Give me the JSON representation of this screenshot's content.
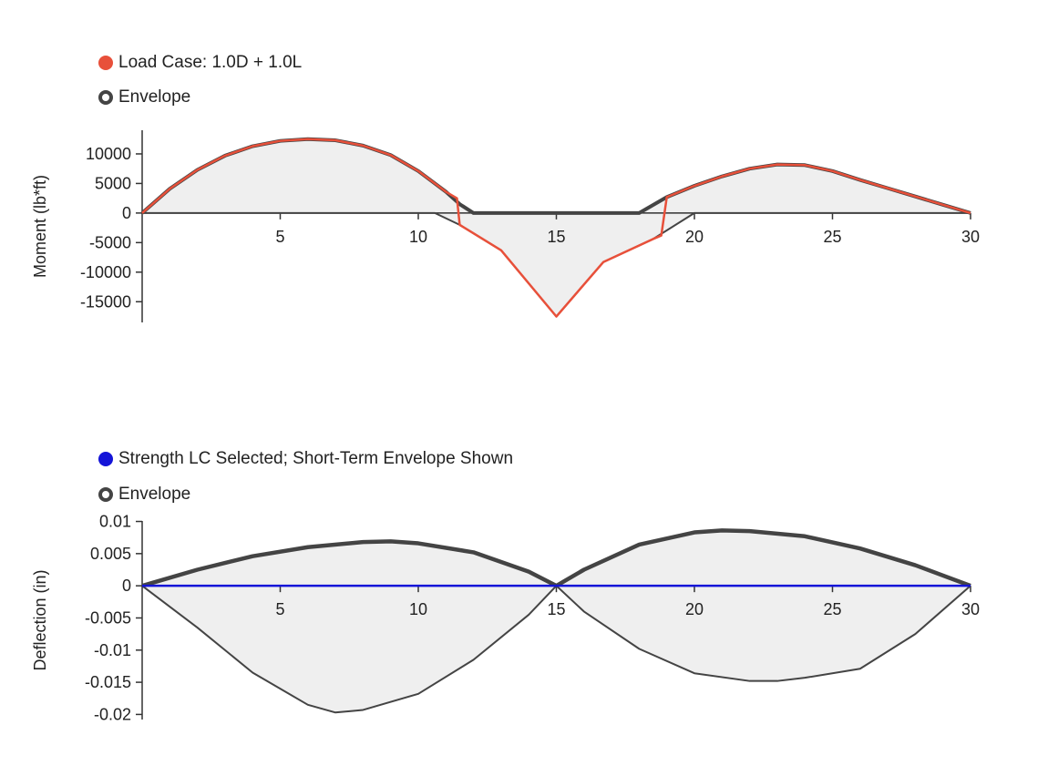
{
  "chart_data": [
    {
      "type": "area",
      "title": "",
      "xlabel": "",
      "ylabel": "Moment (lb*ft)",
      "xlim": [
        0,
        30
      ],
      "ylim": [
        -18500,
        14000
      ],
      "xticks": [
        5,
        10,
        15,
        20,
        25,
        30
      ],
      "yticks": [
        10000,
        5000,
        0,
        -5000,
        -10000,
        -15000
      ],
      "grid": false,
      "legend_placement": "top-left",
      "legend": [
        {
          "label": "Load Case: 1.0D + 1.0L",
          "color": "#e8503a",
          "marker": "filled-circle"
        },
        {
          "label": "Envelope",
          "color": "#444444",
          "marker": "ring"
        }
      ],
      "series": [
        {
          "name": "Envelope",
          "role": "envelope-max",
          "color": "#444444",
          "x": [
            0,
            1,
            2,
            3,
            4,
            5,
            6,
            7,
            8,
            9,
            10,
            11,
            11.5,
            12,
            15,
            18,
            19,
            20,
            21,
            22,
            23,
            24,
            25,
            26,
            27,
            28,
            29,
            30
          ],
          "y": [
            0,
            4100,
            7300,
            9700,
            11300,
            12200,
            12500,
            12300,
            11400,
            9800,
            7100,
            3600,
            1500,
            0,
            0,
            0,
            2700,
            4600,
            6200,
            7500,
            8200,
            8100,
            7100,
            5600,
            4200,
            2800,
            1400,
            0
          ]
        },
        {
          "name": "Envelope",
          "role": "envelope-min",
          "color": "#444444",
          "x": [
            0,
            10.6,
            11.5,
            13,
            15,
            16.7,
            18.5,
            20,
            30
          ],
          "y": [
            0,
            0,
            -2000,
            -6300,
            -17500,
            -8300,
            -4400,
            0,
            0
          ]
        },
        {
          "name": "Load Case: 1.0D + 1.0L",
          "color": "#e8503a",
          "x": [
            0,
            1,
            2,
            3,
            4,
            5,
            6,
            7,
            8,
            9,
            10,
            11,
            11.4,
            11.5,
            13,
            15,
            16.7,
            18.5,
            18.8,
            19,
            20,
            21,
            22,
            23,
            24,
            25,
            26,
            27,
            28,
            29,
            30
          ],
          "y": [
            0,
            4100,
            7300,
            9700,
            11300,
            12200,
            12500,
            12300,
            11400,
            9800,
            7100,
            3600,
            2500,
            -2000,
            -6300,
            -17500,
            -8300,
            -4400,
            -3800,
            2700,
            4600,
            6200,
            7500,
            8200,
            8100,
            7100,
            5600,
            4200,
            2800,
            1400,
            0
          ]
        }
      ]
    },
    {
      "type": "area",
      "title": "",
      "xlabel": "",
      "ylabel": "Deflection (in)",
      "xlim": [
        0,
        30
      ],
      "ylim": [
        -0.0215,
        0.0105
      ],
      "xticks": [
        5,
        10,
        15,
        20,
        25,
        30
      ],
      "yticks": [
        0.01,
        0.005,
        0,
        -0.005,
        -0.01,
        -0.015,
        -0.02
      ],
      "grid": false,
      "legend_placement": "top-left",
      "legend": [
        {
          "label": "Strength LC Selected; Short-Term Envelope Shown",
          "color": "#1414d8",
          "marker": "filled-circle"
        },
        {
          "label": "Envelope",
          "color": "#444444",
          "marker": "ring"
        }
      ],
      "series": [
        {
          "name": "Envelope",
          "role": "envelope-max",
          "color": "#444444",
          "x": [
            0,
            2,
            4,
            6,
            8,
            9,
            10,
            12,
            14,
            15,
            16,
            18,
            20,
            21,
            22,
            24,
            26,
            28,
            30
          ],
          "y": [
            0,
            0.0025,
            0.0046,
            0.006,
            0.0068,
            0.0069,
            0.0066,
            0.0052,
            0.0022,
            0,
            0.0025,
            0.0064,
            0.0083,
            0.0086,
            0.0085,
            0.0077,
            0.0058,
            0.0032,
            0
          ]
        },
        {
          "name": "Envelope",
          "role": "envelope-min",
          "color": "#444444",
          "x": [
            0,
            2,
            4,
            6,
            7,
            8,
            10,
            12,
            14,
            15,
            16,
            18,
            20,
            22,
            23,
            24,
            26,
            28,
            30
          ],
          "y": [
            0,
            -0.0065,
            -0.0135,
            -0.0185,
            -0.0197,
            -0.0193,
            -0.0168,
            -0.0115,
            -0.0045,
            0,
            -0.004,
            -0.0098,
            -0.0136,
            -0.0148,
            -0.0148,
            -0.0143,
            -0.0129,
            -0.0075,
            0
          ]
        },
        {
          "name": "Strength LC Selected; Short-Term Envelope Shown",
          "color": "#1414d8",
          "x": [
            0,
            30
          ],
          "y": [
            0,
            0
          ]
        }
      ]
    }
  ]
}
